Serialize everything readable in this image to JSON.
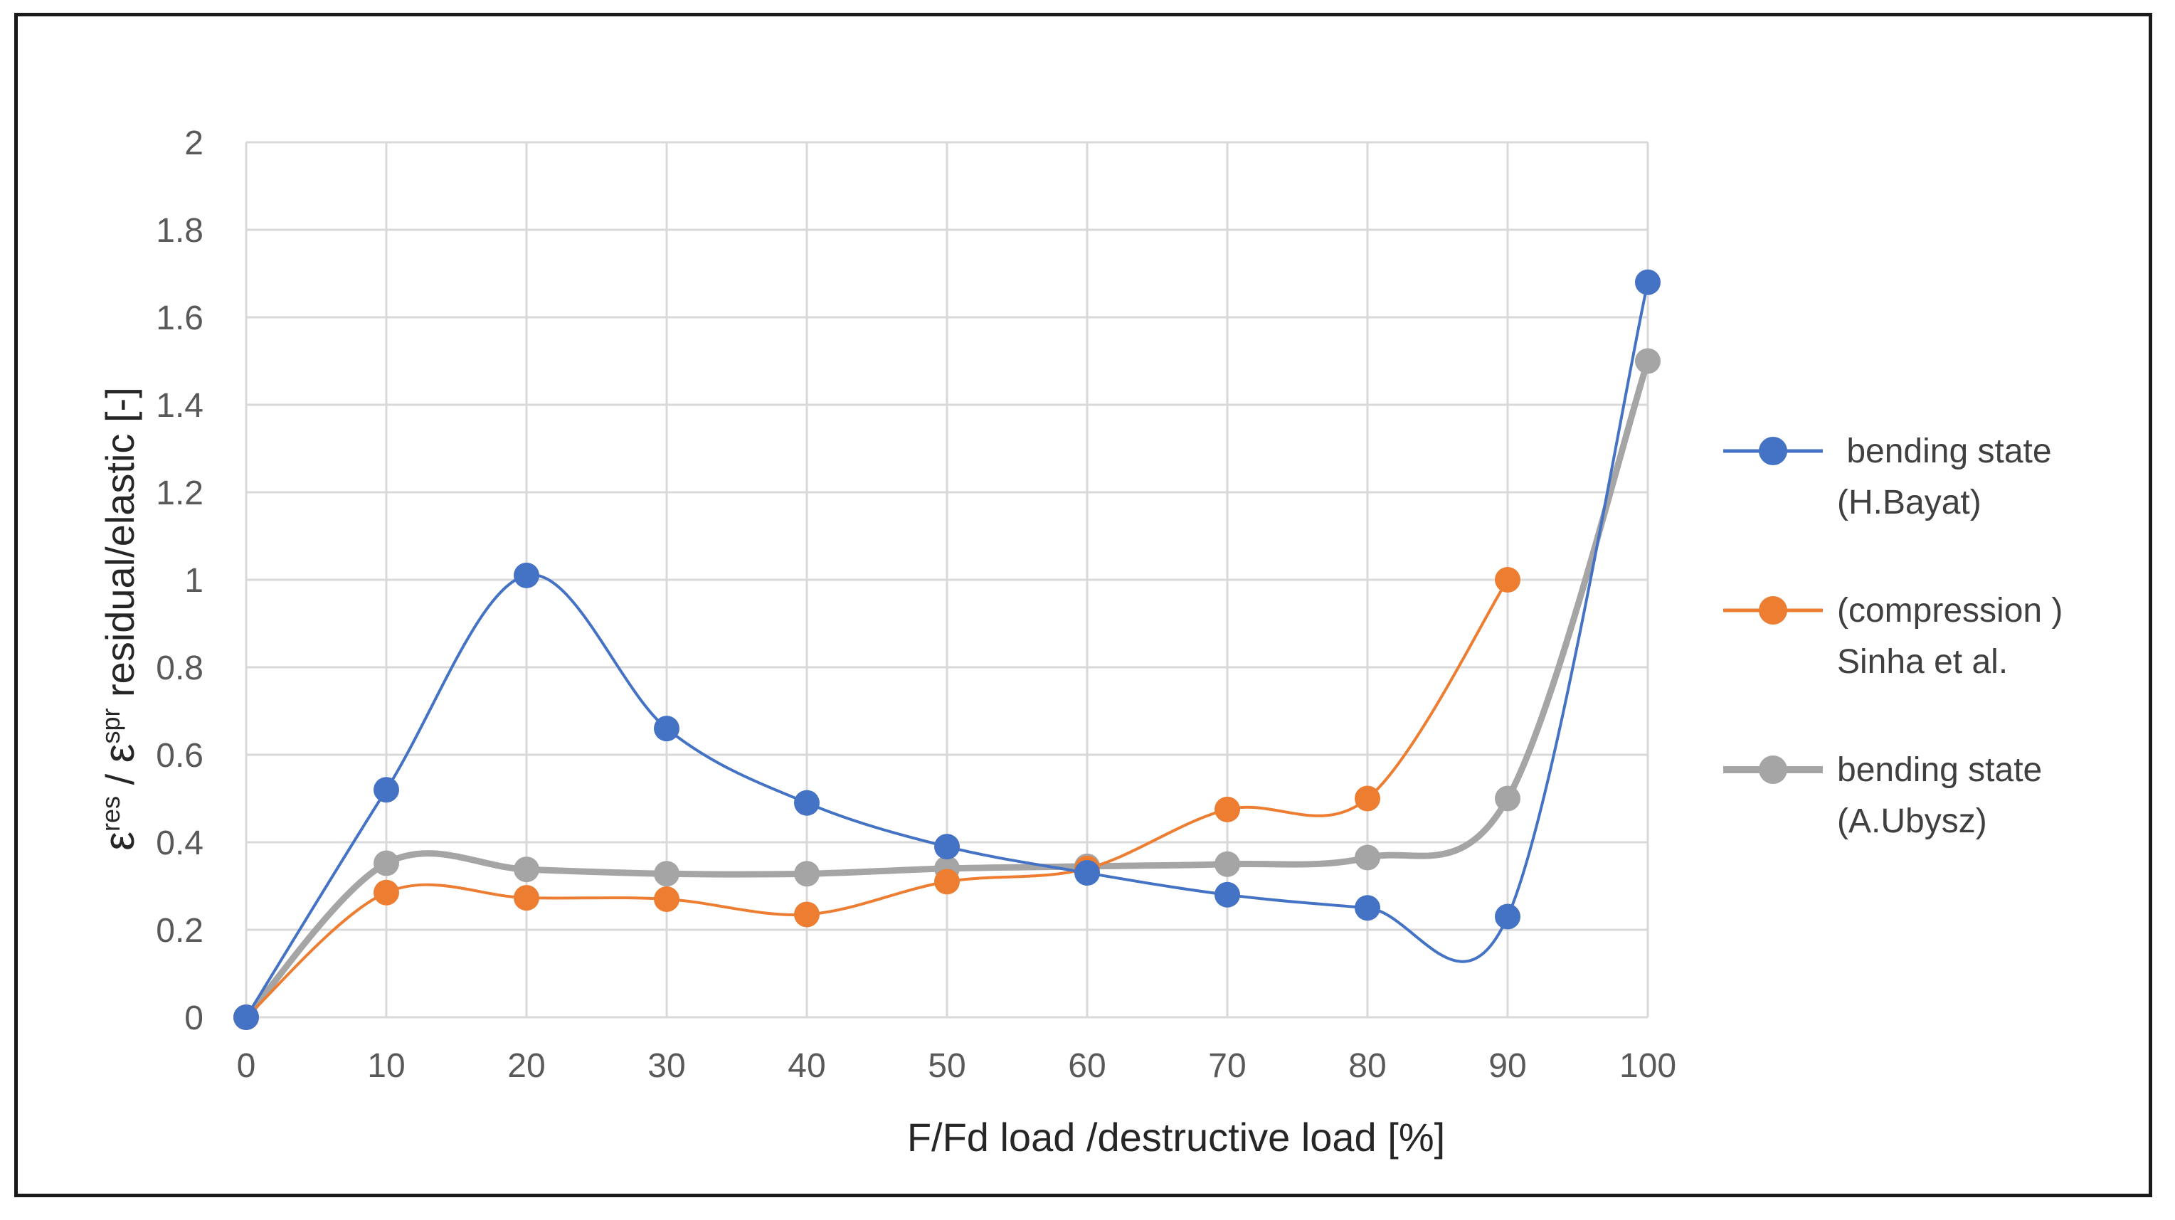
{
  "chart_data": {
    "type": "line",
    "title": "",
    "xlabel": "F/Fd  load /destructive load [%]",
    "ylabel": {
      "eps1": "ε",
      "sup1": "res",
      "slash": " / ",
      "eps2": "ε",
      "sup2": "spr",
      "rest": " residual/elastic [-]"
    },
    "x": [
      0,
      10,
      20,
      30,
      40,
      50,
      60,
      70,
      80,
      90,
      100
    ],
    "xlim": [
      0,
      100
    ],
    "ylim": [
      0,
      2
    ],
    "x_ticks": [
      "0",
      "10",
      "20",
      "30",
      "40",
      "50",
      "60",
      "70",
      "80",
      "90",
      "100"
    ],
    "y_ticks": [
      "0",
      "0.2",
      "0.4",
      "0.6",
      "0.8",
      "1",
      "1.2",
      "1.4",
      "1.6",
      "1.8",
      "2"
    ],
    "grid": true,
    "legend_position": "right",
    "series": [
      {
        "name": "bending state (H.Bayat)",
        "legend_lines": [
          " bending state",
          "(H.Bayat)"
        ],
        "color": "#4472C4",
        "x": [
          0,
          10,
          20,
          30,
          40,
          50,
          60,
          70,
          80,
          90,
          100
        ],
        "values": [
          0,
          0.52,
          1.01,
          0.66,
          0.49,
          0.39,
          0.33,
          0.28,
          0.25,
          0.23,
          1.68
        ]
      },
      {
        "name": "(compression ) Sinha et al.",
        "legend_lines": [
          "(compression )",
          "Sinha et al."
        ],
        "color": "#ED7D31",
        "x": [
          0,
          10,
          20,
          30,
          40,
          50,
          60,
          70,
          80,
          90
        ],
        "values": [
          0,
          0.285,
          0.273,
          0.27,
          0.235,
          0.31,
          0.34,
          0.475,
          0.5,
          1.0
        ]
      },
      {
        "name": "bending state (A.Ubysz)",
        "legend_lines": [
          "bending state",
          "(A.Ubysz)"
        ],
        "color": "#A5A5A5",
        "x": [
          0,
          10,
          20,
          30,
          40,
          50,
          60,
          70,
          80,
          90,
          100
        ],
        "values": [
          0,
          0.352,
          0.338,
          0.328,
          0.328,
          0.34,
          0.345,
          0.35,
          0.365,
          0.5,
          1.5
        ]
      }
    ]
  }
}
